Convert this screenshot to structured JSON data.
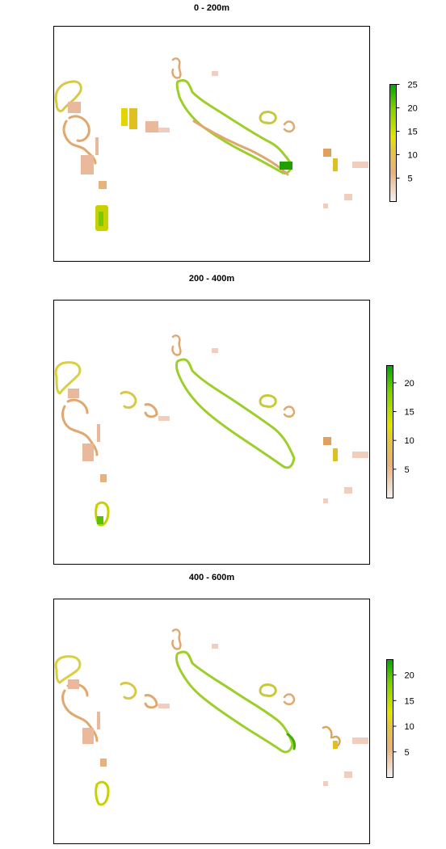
{
  "panels": [
    {
      "title": "0 - 200m",
      "legend": {
        "ticks": [
          "5",
          "10",
          "15",
          "20",
          "25"
        ],
        "max": 25
      }
    },
    {
      "title": "200 - 400m",
      "legend": {
        "ticks": [
          "5",
          "10",
          "15",
          "20"
        ],
        "max": 23
      }
    },
    {
      "title": "400 - 600m",
      "legend": {
        "ticks": [
          "5",
          "10",
          "15",
          "20"
        ],
        "max": 23
      }
    }
  ],
  "colors": {
    "scale_low": "#f2f2f2",
    "scale_mid_low": "#e8b27a",
    "scale_mid": "#e4e400",
    "scale_high": "#00a600",
    "frame": "#000000"
  }
}
